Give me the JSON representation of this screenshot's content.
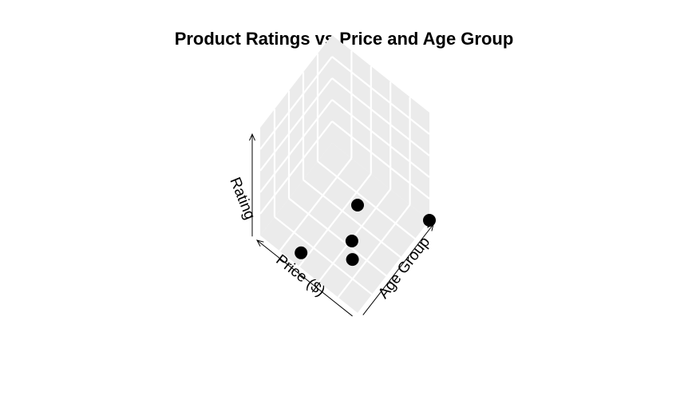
{
  "chart_data": {
    "type": "scatter3d",
    "title": "Product Ratings vs Price and Age Group",
    "xlabel": "Price ($)",
    "ylabel": "Age Group",
    "zlabel": "Rating",
    "xlim": [
      0,
      1
    ],
    "ylim": [
      0,
      1
    ],
    "zlim": [
      0,
      1
    ],
    "grid": true,
    "point_color": "#000000",
    "panel_color": "#ebebeb",
    "grid_color": "#ffffff",
    "points": [
      {
        "x": 0.0,
        "y": 1.0,
        "z": 0.0
      },
      {
        "x": 0.39,
        "y": 0.45,
        "z": 0.0
      },
      {
        "x": 0.2,
        "y": 0.2,
        "z": 0.18
      },
      {
        "x": 0.0,
        "y": 0.0,
        "z": 1.0
      },
      {
        "x": 0.58,
        "y": 0.0,
        "z": 0.14
      }
    ]
  }
}
